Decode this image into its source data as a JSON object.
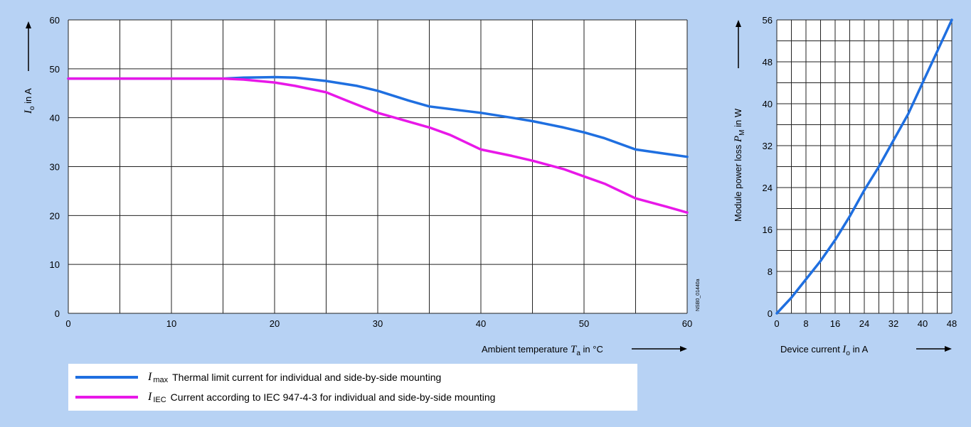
{
  "chart_data": [
    {
      "type": "line",
      "xlabel_prefix": "Ambient temperature",
      "xlabel_symbol": "T",
      "xlabel_sub": "a",
      "xlabel_suffix": "in °C",
      "ylabel_symbol": "I",
      "ylabel_sub": "o",
      "ylabel_suffix": "in A",
      "xlim": [
        0,
        60
      ],
      "ylim": [
        0,
        60
      ],
      "xticks": [
        0,
        10,
        20,
        30,
        40,
        50,
        60
      ],
      "yticks": [
        0,
        10,
        20,
        30,
        40,
        50,
        60
      ],
      "grid": true,
      "series": [
        {
          "name": "Thermal limit current for individual and side-by-side mounting",
          "symbol": "I",
          "sub": "max",
          "color": "#1f6fe0",
          "x": [
            0,
            5,
            10,
            15,
            17,
            20,
            22,
            25,
            28,
            30,
            33,
            35,
            38,
            40,
            43,
            45,
            48,
            50,
            52,
            55,
            58,
            60
          ],
          "y": [
            48,
            48,
            48,
            48,
            48.2,
            48.3,
            48.2,
            47.5,
            46.5,
            45.5,
            43.5,
            42.3,
            41.5,
            41,
            40,
            39.3,
            38,
            37,
            35.8,
            33.5,
            32.6,
            32
          ]
        },
        {
          "name": "Current according to IEC 947-4-3 for individual and side-by-side mounting",
          "symbol": "I",
          "sub": "IEC",
          "color": "#e818e8",
          "x": [
            0,
            5,
            10,
            15,
            17,
            20,
            22,
            25,
            27,
            30,
            33,
            35,
            37,
            40,
            43,
            45,
            48,
            50,
            52,
            55,
            58,
            60
          ],
          "y": [
            48,
            48,
            48,
            48,
            47.8,
            47.2,
            46.5,
            45.2,
            43.5,
            41,
            39.2,
            38,
            36.5,
            33.5,
            32.2,
            31.2,
            29.5,
            28,
            26.5,
            23.5,
            21.8,
            20.6
          ]
        }
      ],
      "side_code": "NSB0_01440a"
    },
    {
      "type": "line",
      "xlabel_prefix": "Device current",
      "xlabel_symbol": "I",
      "xlabel_sub": "o",
      "xlabel_suffix": "in A",
      "ylabel_prefix": "Module power loss",
      "ylabel_symbol": "P",
      "ylabel_sub": "M",
      "ylabel_suffix": "in W",
      "xlim": [
        0,
        48
      ],
      "ylim": [
        0,
        56
      ],
      "xticks": [
        0,
        8,
        16,
        24,
        32,
        40,
        48
      ],
      "yticks": [
        0,
        8,
        16,
        24,
        32,
        40,
        48,
        56
      ],
      "grid": true,
      "series": [
        {
          "color": "#1f6fe0",
          "x": [
            0,
            4,
            8,
            12,
            16,
            20,
            24,
            28,
            32,
            36,
            40,
            44,
            48
          ],
          "y": [
            0,
            3,
            6.5,
            10,
            14,
            18.5,
            23.5,
            28,
            33,
            38,
            44,
            50,
            56
          ]
        }
      ]
    }
  ]
}
